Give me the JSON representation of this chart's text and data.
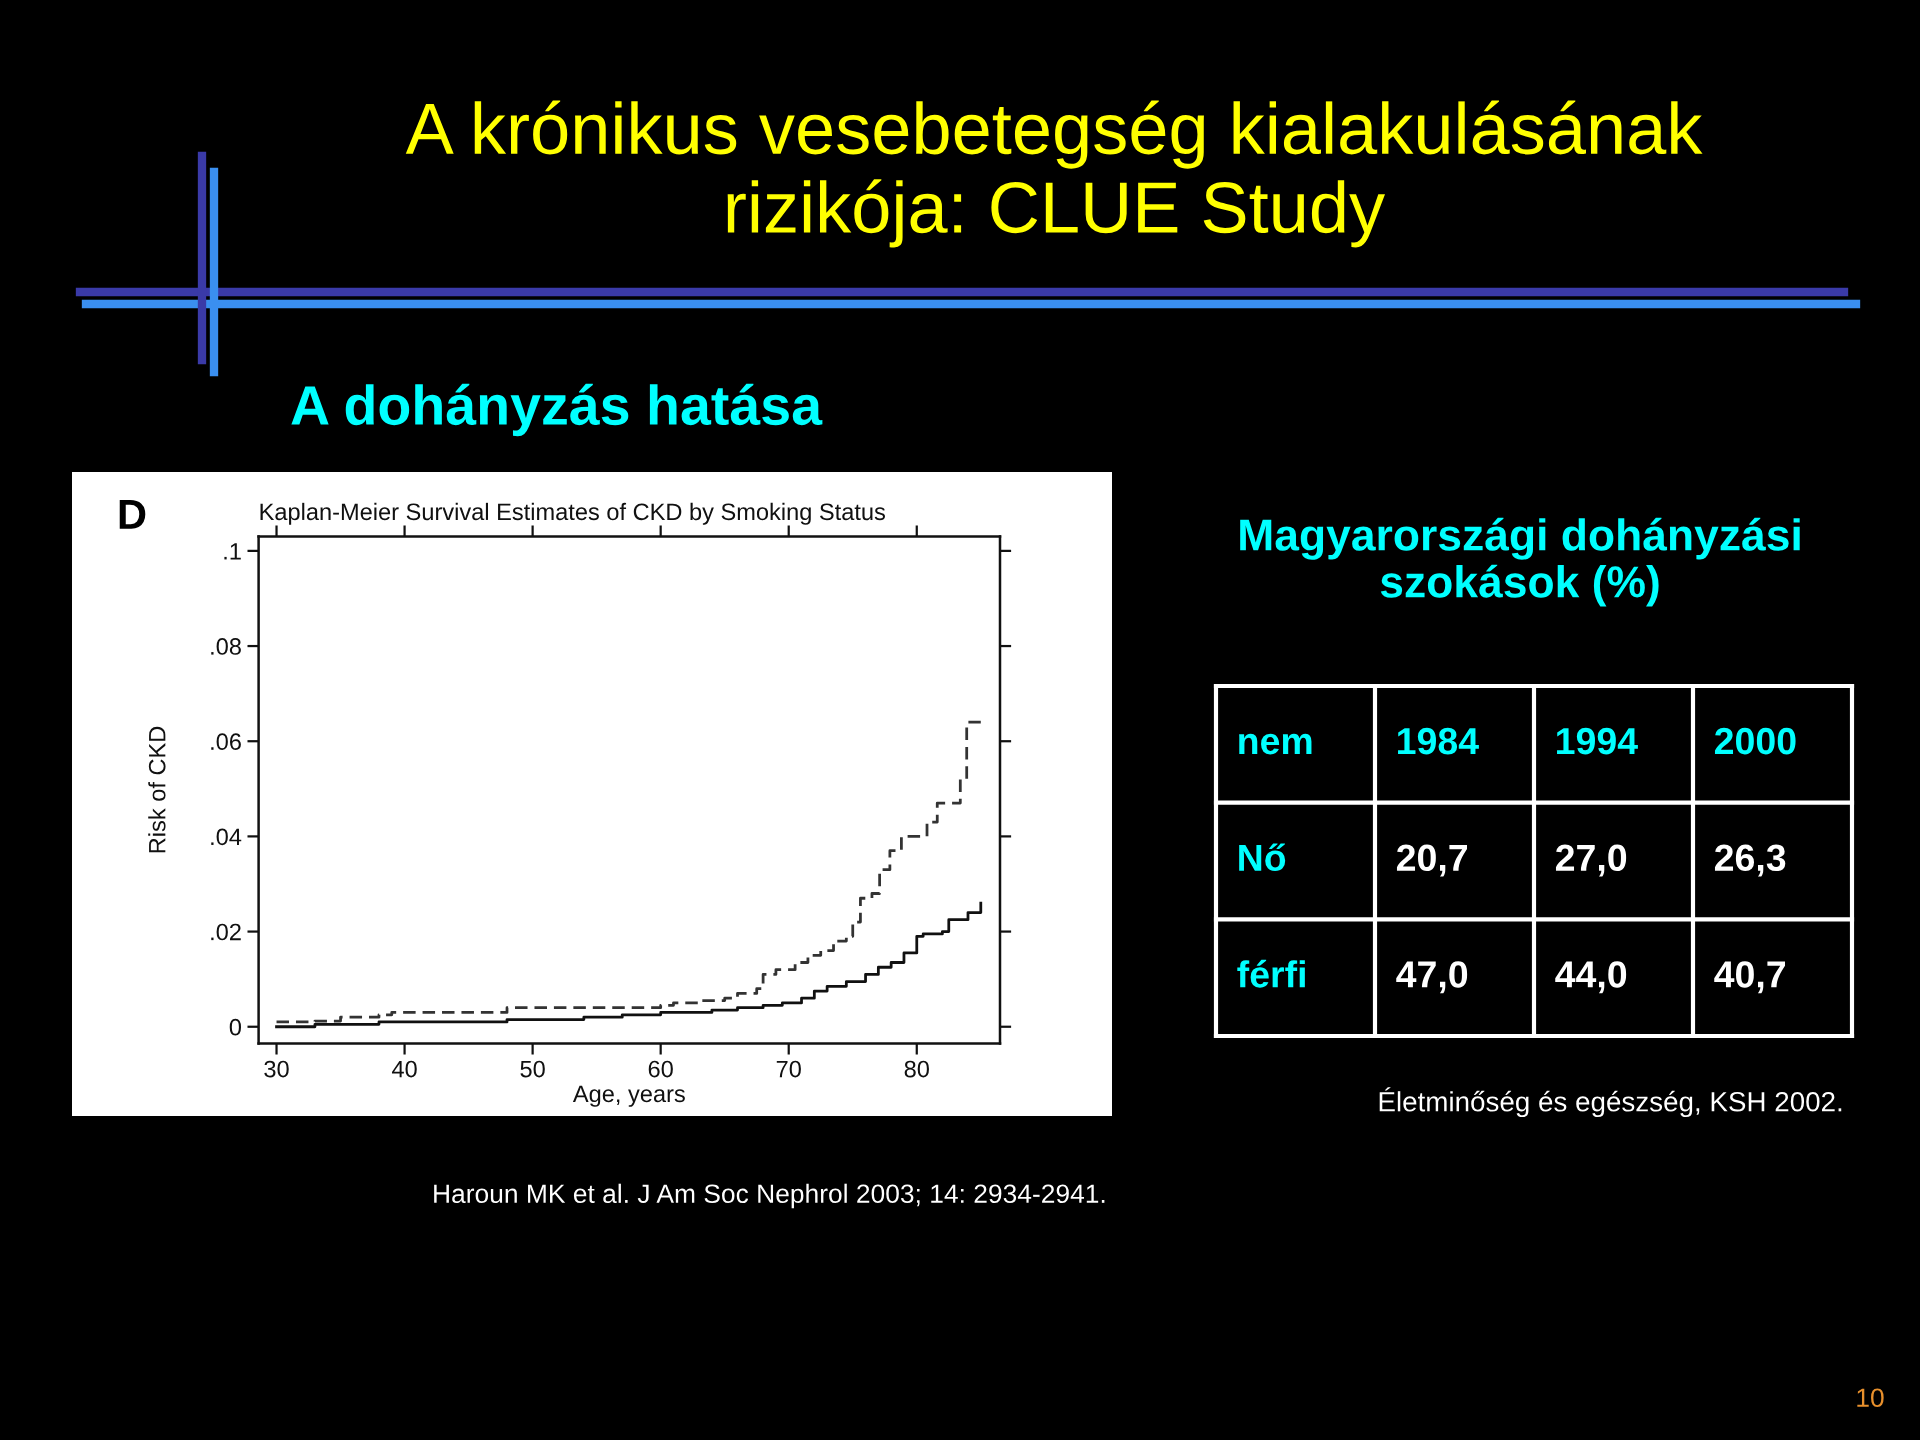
{
  "chart_data": [
    {
      "type": "other",
      "title": "A krónikus vesebetegség kialakulásának\nrizikója: CLUE Study",
      "subtitle": "A dohányzás hatása",
      "annotations": [
        "10"
      ]
    },
    {
      "type": "step",
      "title": "Kaplan-Meier Survival Estimates of CKD by Smoking Status",
      "xlabel": "Age, years",
      "ylabel": "Risk of CKD",
      "xlim": [
        28.6,
        86.5
      ],
      "ylim": [
        -0.0035,
        0.103
      ],
      "xticks": [
        30,
        40,
        50,
        60,
        70,
        80
      ],
      "yticks": [
        0,
        {
          "value": 0.02,
          "label": ".02"
        },
        {
          "value": 0.04,
          "label": ".04"
        },
        {
          "value": 0.06,
          "label": ".06"
        },
        {
          "value": 0.08,
          "label": ".08"
        },
        {
          "value": 0.1,
          "label": ".1"
        }
      ],
      "series": [
        {
          "color": "#333333",
          "line_style": "dashed",
          "x": [
            30,
            33,
            35,
            38,
            39,
            48,
            60,
            61,
            63,
            65,
            66,
            67.5,
            68,
            69,
            70.5,
            71.5,
            72.5,
            73.5,
            74.5,
            75,
            75.6,
            76.5,
            77.1,
            77.9,
            78.8,
            80.8,
            81.6,
            83.4,
            83.9,
            85
          ],
          "values": [
            0.001,
            0.0012,
            0.002,
            0.0025,
            0.003,
            0.004,
            0.0045,
            0.005,
            0.0055,
            0.006,
            0.007,
            0.008,
            0.011,
            0.012,
            0.0135,
            0.015,
            0.016,
            0.018,
            0.019,
            0.022,
            0.027,
            0.028,
            0.033,
            0.037,
            0.04,
            0.043,
            0.047,
            0.052,
            0.064,
            0.064
          ]
        },
        {
          "color": "#111111",
          "line_style": "solid",
          "x": [
            30,
            33,
            38,
            48,
            54,
            57,
            60,
            64,
            66,
            68,
            69.5,
            71,
            72,
            73,
            74.5,
            76,
            77,
            78,
            79,
            80,
            80.5,
            82,
            82.5,
            84,
            85
          ],
          "values": [
            0.0,
            0.0005,
            0.001,
            0.0015,
            0.002,
            0.0025,
            0.003,
            0.0035,
            0.004,
            0.0045,
            0.005,
            0.006,
            0.0075,
            0.0085,
            0.0095,
            0.011,
            0.0125,
            0.0135,
            0.0155,
            0.019,
            0.0195,
            0.02,
            0.0225,
            0.024,
            0.026
          ]
        }
      ],
      "annotations": [
        "D",
        "Haroun MK et al. J Am Soc Nephrol 2003; 14: 2934-2941."
      ]
    },
    {
      "type": "other",
      "title": "Magyarországi dohányzási\nszokások (%)",
      "ylabel": "nem",
      "categories": [
        "1984",
        "1994",
        "2000"
      ],
      "y_categories": [
        "Nő",
        "férfi"
      ],
      "cell_labels": [
        [
          "20,7",
          "27,0",
          "26,3"
        ],
        [
          "47,0",
          "44,0",
          "40,7"
        ]
      ],
      "annotations": [
        "Életminőség és egészség, KSH 2002."
      ]
    }
  ]
}
